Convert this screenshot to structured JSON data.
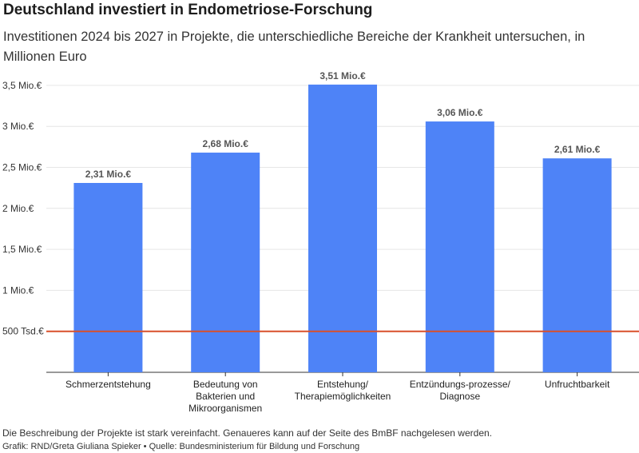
{
  "chart_data": {
    "type": "bar",
    "title": "Deutschland investiert in Endometriose-Forschung",
    "subtitle": "Investitionen 2024 bis 2027 in Projekte, die unterschiedliche Bereiche der Krankheit untersuchen, in Millionen Euro",
    "categories": [
      [
        "Schmerzentstehung"
      ],
      [
        "Bedeutung von",
        "Bakterien und",
        "Mikroorganismen"
      ],
      [
        "Entstehung/",
        "Therapiemöglichkeiten"
      ],
      [
        "Entzündungs-prozesse/",
        "Diagnose"
      ],
      [
        "Unfruchtbarkeit"
      ]
    ],
    "values": [
      2.31,
      2.68,
      3.51,
      3.06,
      2.61
    ],
    "data_labels": [
      "2,31 Mio.€",
      "2,68 Mio.€",
      "3,51 Mio.€",
      "3,06 Mio.€",
      "2,61 Mio.€"
    ],
    "ylim": [
      0,
      3.5
    ],
    "yticks": [
      {
        "value": 0.5,
        "label": "500 Tsd.€"
      },
      {
        "value": 1.0,
        "label": "1 Mio.€"
      },
      {
        "value": 1.5,
        "label": "1,5 Mio.€"
      },
      {
        "value": 2.0,
        "label": "2 Mio.€"
      },
      {
        "value": 2.5,
        "label": "2,5 Mio.€"
      },
      {
        "value": 3.0,
        "label": "3 Mio.€"
      },
      {
        "value": 3.5,
        "label": "3,5 Mio.€"
      }
    ],
    "reference_line": 0.5,
    "grid": true,
    "colors": {
      "bar": "#4e83f7",
      "reference": "#d9502a",
      "grid": "#e6e6e6",
      "axis": "#333333"
    }
  },
  "footer": {
    "note": "Die Beschreibung der Projekte ist stark vereinfacht. Genaueres kann auf der Seite des BmBF nachgelesen werden.",
    "credit": "Grafik: RND/Greta Giuliana Spieker • Quelle: Bundesministerium für Bildung und Forschung"
  }
}
